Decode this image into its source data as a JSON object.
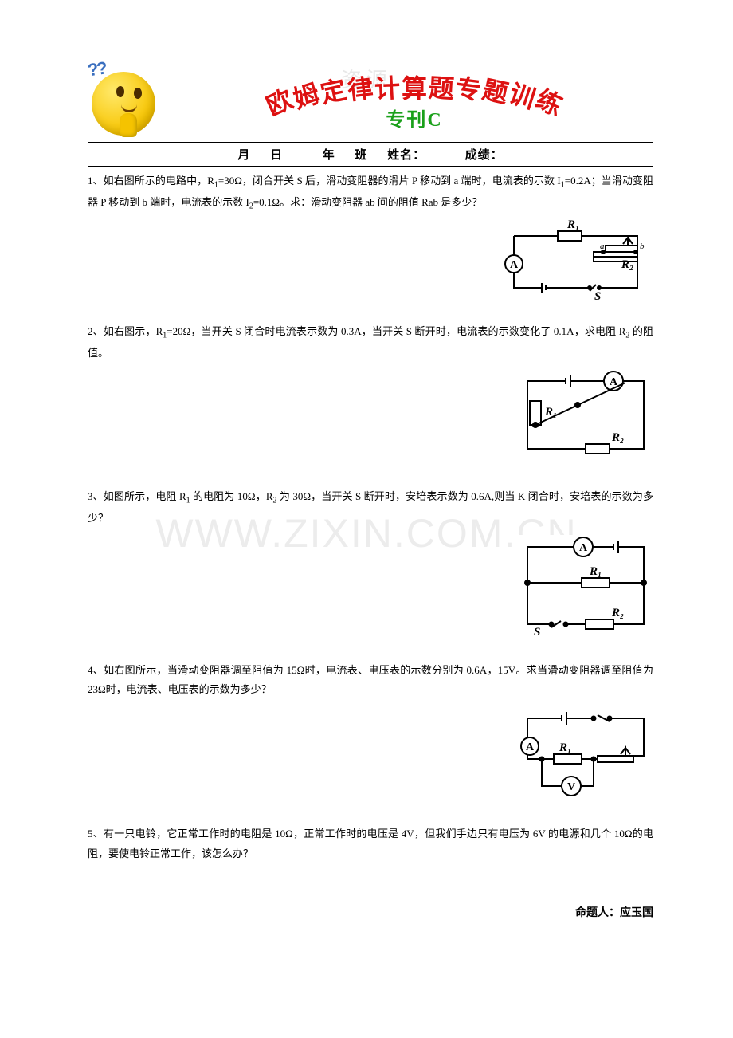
{
  "watermark_top": "资源",
  "watermark_big": "WWW.ZIXIN.COM.CN",
  "title": {
    "chars": [
      "欧",
      "姆",
      "定",
      "律",
      "计",
      "算",
      "题",
      "专",
      "题",
      "训",
      "练"
    ],
    "char_colors": [
      "#d11",
      "#d11",
      "#d11",
      "#d11",
      "#d11",
      "#d11",
      "#d11",
      "#d11",
      "#d11",
      "#d11",
      "#d11"
    ],
    "char_rotate": [
      -24,
      -18,
      -12,
      -7,
      -3,
      0,
      3,
      7,
      12,
      18,
      24
    ],
    "char_dy": [
      18,
      10,
      4,
      1,
      0,
      0,
      0,
      1,
      4,
      10,
      18
    ],
    "subtitle": "专刊C",
    "title_color": "#d11",
    "subtitle_color": "#1aa01a"
  },
  "info_labels": {
    "month": "月",
    "day": "日",
    "grade": "年",
    "class": "班",
    "name_label": "姓名：",
    "score_label": "成绩："
  },
  "questions": {
    "q1": {
      "text_a": "1、如右图所示的电路中，R",
      "sub_a": "1",
      "text_b": "=30Ω，闭合开关 S 后，滑动变阻器的滑片 P 移动到 a 端时，电流表的示数 I",
      "sub_b": "1",
      "text_c": "=0.2A；当滑动变阻器 P 移动到 b 端时，电流表的示数 I",
      "sub_c": "2",
      "text_d": "=0.1Ω。求：滑动变阻器 ab 间的阻值 Rab 是多少？",
      "labels": {
        "r1": "R₁",
        "r2": "R₂",
        "a": "a",
        "b": "b",
        "s": "S",
        "A": "A"
      }
    },
    "q2": {
      "text_a": "2、如右图示，R",
      "sub_a": "1",
      "text_b": "=20Ω，当开关 S 闭合时电流表示数为 0.3A，当开关 S 断开时，电流表的示数变化了 0.1A，求电阻 R",
      "sub_b": "2",
      "text_c": " 的阻值。",
      "labels": {
        "r1": "R₁",
        "r2": "R₂",
        "A": "A"
      }
    },
    "q3": {
      "text_a": "3、如图所示，电阻 R",
      "sub_a": "1",
      "text_b": " 的电阻为 10Ω，R",
      "sub_b": "2",
      "text_c": " 为 30Ω，当开关 S 断开时，安培表示数为 0.6A,则当 K 闭合时，安培表的示数为多少？",
      "labels": {
        "r1": "R₁",
        "r2": "R₂",
        "s": "S",
        "A": "A"
      }
    },
    "q4": {
      "text": "4、如右图所示，当滑动变阻器调至阻值为 15Ω时，电流表、电压表的示数分别为 0.6A，15V。求当滑动变阻器调至阻值为 23Ω时，电流表、电压表的示数为多少？",
      "labels": {
        "r1": "R₁",
        "A": "A",
        "V": "V"
      }
    },
    "q5": {
      "text": "5、有一只电铃，它正常工作时的电阻是 10Ω，正常工作时的电压是 4V，但我们手边只有电压为 6V 的电源和几个 10Ω的电阻，要使电铃正常工作，该怎么办？"
    }
  },
  "author": "命题人：应玉国",
  "circuit_style": {
    "stroke": "#000000",
    "stroke_width": 2,
    "font_family": "Times New Roman, serif",
    "label_fontsize": 15,
    "label_fontweight": "bold",
    "meter_fill": "#ffffff"
  }
}
